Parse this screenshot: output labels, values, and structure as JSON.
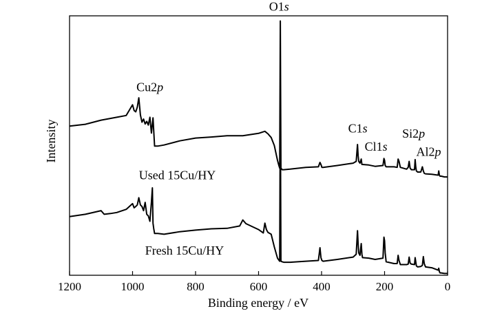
{
  "chart_data": {
    "type": "line",
    "xlabel": "Binding energy / eV",
    "ylabel": "Intensity",
    "xlim": [
      1200,
      0
    ],
    "x_ticks": [
      1200,
      1000,
      800,
      600,
      400,
      200,
      0
    ],
    "ylim": [
      0,
      100
    ],
    "y_ticks_shown": false,
    "legend": "none",
    "series": [
      {
        "name": "Used 15Cu/HY",
        "x": [
          1200,
          1150,
          1100,
          1050,
          1020,
          1000,
          995,
          990,
          985,
          980,
          975,
          970,
          965,
          960,
          955,
          950,
          945,
          940,
          935,
          930,
          920,
          900,
          850,
          800,
          750,
          700,
          650,
          600,
          580,
          570,
          560,
          550,
          540,
          536,
          533,
          531,
          529,
          525,
          520,
          500,
          450,
          410,
          405,
          402,
          399,
          395,
          350,
          300,
          290,
          286,
          284,
          282,
          278,
          274,
          272,
          270,
          250,
          230,
          205,
          202,
          200,
          198,
          195,
          170,
          160,
          157,
          154,
          150,
          130,
          125,
          122,
          119,
          115,
          105,
          103,
          101,
          99,
          95,
          85,
          80,
          77,
          74,
          70,
          50,
          30,
          28,
          26,
          24,
          20,
          10,
          0
        ],
        "y": [
          57.5,
          58.2,
          59.8,
          60.9,
          61.6,
          65.7,
          63.5,
          63.0,
          64.8,
          68.4,
          61.8,
          59.0,
          60.2,
          58.3,
          59.3,
          57.9,
          60.9,
          54.8,
          60.7,
          49.8,
          49.8,
          50.2,
          51.8,
          52.9,
          53.3,
          53.8,
          53.8,
          54.7,
          55.5,
          54.5,
          53.1,
          50.0,
          44.3,
          42.5,
          41.3,
          98.0,
          41.3,
          40.7,
          40.7,
          40.9,
          41.6,
          41.8,
          43.5,
          42.7,
          41.6,
          41.6,
          42.3,
          43.2,
          43.9,
          50.4,
          46.1,
          43.9,
          43.2,
          44.8,
          42.7,
          42.7,
          42.5,
          42.0,
          42.3,
          45.0,
          44.3,
          42.3,
          41.8,
          41.8,
          41.6,
          44.8,
          43.9,
          41.6,
          40.9,
          41.6,
          43.9,
          41.3,
          40.7,
          40.7,
          44.6,
          41.8,
          40.2,
          39.8,
          39.8,
          41.8,
          40.2,
          39.3,
          39.1,
          38.9,
          38.6,
          40.2,
          38.6,
          38.2,
          38.2,
          37.9,
          37.9
        ]
      },
      {
        "name": "Fresh 15Cu/HY",
        "x": [
          1200,
          1150,
          1100,
          1090,
          1070,
          1050,
          1020,
          1000,
          995,
          990,
          985,
          980,
          975,
          970,
          965,
          960,
          955,
          950,
          945,
          940,
          937,
          935,
          933,
          930,
          920,
          900,
          850,
          800,
          750,
          700,
          660,
          650,
          640,
          600,
          585,
          580,
          575,
          570,
          560,
          550,
          540,
          536,
          533,
          531,
          529,
          525,
          520,
          500,
          450,
          410,
          405,
          402,
          399,
          395,
          350,
          300,
          290,
          286,
          284,
          282,
          278,
          274,
          272,
          270,
          250,
          230,
          205,
          202,
          200,
          198,
          195,
          170,
          160,
          157,
          154,
          150,
          130,
          125,
          122,
          119,
          115,
          105,
          103,
          101,
          99,
          95,
          85,
          80,
          77,
          74,
          70,
          50,
          30,
          28,
          26,
          24,
          20,
          10,
          0
        ],
        "y": [
          22.6,
          23.5,
          24.9,
          23.5,
          23.8,
          24.2,
          25.4,
          27.6,
          26.0,
          26.5,
          27.1,
          29.9,
          27.1,
          26.5,
          24.9,
          28.1,
          23.5,
          22.9,
          20.8,
          28.1,
          33.7,
          20.1,
          18.1,
          16.1,
          16.1,
          15.8,
          16.8,
          17.4,
          17.9,
          18.1,
          19.0,
          21.3,
          19.9,
          17.6,
          16.3,
          20.1,
          17.6,
          16.5,
          15.8,
          10.9,
          6.6,
          5.9,
          5.4,
          69.7,
          5.4,
          5.2,
          5.0,
          5.0,
          5.4,
          5.7,
          10.6,
          6.8,
          5.7,
          5.4,
          6.1,
          7.0,
          8.1,
          17.2,
          12.2,
          8.6,
          7.7,
          12.2,
          8.1,
          6.8,
          6.6,
          6.1,
          6.6,
          14.7,
          13.3,
          8.6,
          5.2,
          4.5,
          4.5,
          7.7,
          5.7,
          4.1,
          4.1,
          4.3,
          7.0,
          4.7,
          4.3,
          4.1,
          6.8,
          5.2,
          3.6,
          3.2,
          3.4,
          3.8,
          7.2,
          4.5,
          3.2,
          2.9,
          2.0,
          2.7,
          1.4,
          0.9,
          0.9,
          0.7,
          0.7
        ]
      }
    ],
    "annotations": [
      {
        "text": "O1",
        "italic": "s",
        "x": 535,
        "y": 102
      },
      {
        "text": "Cu2",
        "italic": "p",
        "x": 945,
        "y": 71
      },
      {
        "text": "C1",
        "italic": "s",
        "x": 285,
        "y": 55
      },
      {
        "text": "Cl1",
        "italic": "s",
        "x": 227,
        "y": 48
      },
      {
        "text": "Si2",
        "italic": "p",
        "x": 108,
        "y": 53
      },
      {
        "text": "Al2",
        "italic": "p",
        "x": 60,
        "y": 46
      },
      {
        "text": "Used 15Cu/HY",
        "italic": "",
        "x": 858,
        "y": 37
      },
      {
        "text": "Fresh 15Cu/HY",
        "italic": "",
        "x": 835,
        "y": 8
      }
    ]
  }
}
